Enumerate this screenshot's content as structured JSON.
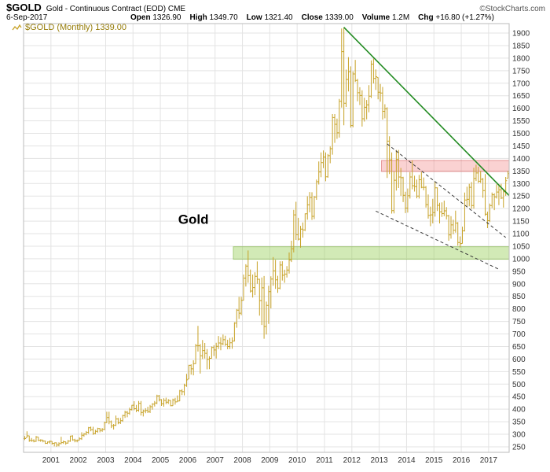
{
  "header": {
    "symbol": "$GOLD",
    "description": "Gold - Continuous Contract (EOD) CME",
    "site": "©StockCharts.com",
    "date": "6-Sep-2017",
    "quote": [
      {
        "label": "Open",
        "value": "1326.90"
      },
      {
        "label": "High",
        "value": "1349.70"
      },
      {
        "label": "Low",
        "value": "1321.40"
      },
      {
        "label": "Close",
        "value": "1339.00"
      },
      {
        "label": "Volume",
        "value": "1.2M"
      },
      {
        "label": "Chg",
        "value": "+16.80 (+1.27%)"
      }
    ]
  },
  "legend": {
    "text": "$GOLD (Monthly) 1339.00"
  },
  "chart_data": {
    "type": "bar",
    "subtype": "monthly-ohlc",
    "title": "$GOLD (Monthly) 1339.00",
    "x_start_year": 2000,
    "x_tick_years": [
      2001,
      2002,
      2003,
      2004,
      2005,
      2006,
      2007,
      2008,
      2009,
      2010,
      2011,
      2012,
      2013,
      2014,
      2015,
      2016,
      2017
    ],
    "y_ticks": [
      1900,
      1850,
      1800,
      1750,
      1700,
      1650,
      1600,
      1550,
      1500,
      1450,
      1400,
      1350,
      1300,
      1250,
      1200,
      1150,
      1100,
      1050,
      1000,
      950,
      900,
      850,
      800,
      750,
      700,
      650,
      600,
      550,
      500,
      450,
      400,
      350,
      300,
      250
    ],
    "ylim": [
      250,
      1900
    ],
    "bars_hlc": [
      [
        293,
        277,
        283
      ],
      [
        312,
        287,
        294
      ],
      [
        295,
        270,
        276
      ],
      [
        285,
        270,
        275
      ],
      [
        280,
        268,
        272
      ],
      [
        293,
        270,
        289
      ],
      [
        289,
        273,
        276
      ],
      [
        280,
        270,
        277
      ],
      [
        278,
        268,
        273
      ],
      [
        275,
        262,
        264
      ],
      [
        271,
        262,
        269
      ],
      [
        275,
        263,
        272
      ],
      [
        272,
        258,
        264
      ],
      [
        267,
        252,
        266
      ],
      [
        267,
        250,
        257
      ],
      [
        268,
        252,
        263
      ],
      [
        290,
        260,
        267
      ],
      [
        275,
        262,
        270
      ],
      [
        271,
        258,
        265
      ],
      [
        277,
        263,
        273
      ],
      [
        294,
        270,
        293
      ],
      [
        296,
        274,
        278
      ],
      [
        282,
        268,
        274
      ],
      [
        279,
        268,
        276
      ],
      [
        288,
        276,
        282
      ],
      [
        308,
        278,
        296
      ],
      [
        305,
        290,
        301
      ],
      [
        313,
        296,
        308
      ],
      [
        329,
        302,
        326
      ],
      [
        331,
        312,
        318
      ],
      [
        330,
        298,
        303
      ],
      [
        318,
        300,
        312
      ],
      [
        326,
        306,
        323
      ],
      [
        325,
        308,
        316
      ],
      [
        325,
        310,
        319
      ],
      [
        350,
        316,
        347
      ],
      [
        390,
        345,
        367
      ],
      [
        390,
        340,
        350
      ],
      [
        355,
        325,
        334
      ],
      [
        341,
        319,
        336
      ],
      [
        375,
        333,
        361
      ],
      [
        365,
        340,
        346
      ],
      [
        365,
        341,
        354
      ],
      [
        378,
        350,
        375
      ],
      [
        394,
        365,
        388
      ],
      [
        393,
        368,
        384
      ],
      [
        406,
        378,
        398
      ],
      [
        417,
        395,
        416
      ],
      [
        432,
        396,
        402
      ],
      [
        417,
        388,
        396
      ],
      [
        433,
        390,
        423
      ],
      [
        433,
        375,
        387
      ],
      [
        398,
        371,
        393
      ],
      [
        404,
        384,
        395
      ],
      [
        410,
        385,
        391
      ],
      [
        417,
        385,
        410
      ],
      [
        424,
        398,
        420
      ],
      [
        433,
        411,
        425
      ],
      [
        458,
        420,
        453
      ],
      [
        457,
        431,
        438
      ],
      [
        440,
        413,
        422
      ],
      [
        444,
        410,
        435
      ],
      [
        446,
        420,
        428
      ],
      [
        440,
        421,
        435
      ],
      [
        436,
        412,
        414
      ],
      [
        442,
        414,
        437
      ],
      [
        445,
        418,
        429
      ],
      [
        455,
        429,
        433
      ],
      [
        477,
        432,
        473
      ],
      [
        480,
        456,
        470
      ],
      [
        502,
        455,
        495
      ],
      [
        541,
        489,
        517
      ],
      [
        577,
        520,
        575
      ],
      [
        579,
        538,
        561
      ],
      [
        595,
        535,
        582
      ],
      [
        660,
        580,
        654
      ],
      [
        732,
        630,
        653
      ],
      [
        660,
        542,
        613
      ],
      [
        676,
        600,
        634
      ],
      [
        664,
        602,
        623
      ],
      [
        640,
        559,
        599
      ],
      [
        611,
        560,
        603
      ],
      [
        650,
        603,
        646
      ],
      [
        655,
        612,
        636
      ],
      [
        665,
        602,
        651
      ],
      [
        692,
        640,
        664
      ],
      [
        687,
        635,
        661
      ],
      [
        698,
        655,
        677
      ],
      [
        693,
        652,
        659
      ],
      [
        677,
        639,
        650
      ],
      [
        684,
        640,
        665
      ],
      [
        687,
        641,
        672
      ],
      [
        747,
        670,
        743
      ],
      [
        800,
        725,
        795
      ],
      [
        848,
        760,
        783
      ],
      [
        848,
        775,
        834
      ],
      [
        937,
        833,
        923
      ],
      [
        978,
        889,
        971
      ],
      [
        1033,
        904,
        933
      ],
      [
        957,
        865,
        871
      ],
      [
        937,
        845,
        885
      ],
      [
        946,
        855,
        930
      ],
      [
        989,
        900,
        918
      ],
      [
        920,
        773,
        833
      ],
      [
        925,
        736,
        884
      ],
      [
        931,
        681,
        730
      ],
      [
        829,
        698,
        814
      ],
      [
        892,
        740,
        869
      ],
      [
        930,
        802,
        919
      ],
      [
        1007,
        892,
        952
      ],
      [
        996,
        880,
        916
      ],
      [
        932,
        864,
        883
      ],
      [
        990,
        878,
        975
      ],
      [
        990,
        913,
        934
      ],
      [
        956,
        904,
        939
      ],
      [
        971,
        925,
        955
      ],
      [
        1025,
        941,
        995
      ],
      [
        1072,
        987,
        1040
      ],
      [
        1195,
        1025,
        1175
      ],
      [
        1227,
        1075,
        1096
      ],
      [
        1163,
        1073,
        1078
      ],
      [
        1131,
        1044,
        1118
      ],
      [
        1145,
        1084,
        1115
      ],
      [
        1181,
        1110,
        1179
      ],
      [
        1249,
        1156,
        1215
      ],
      [
        1266,
        1185,
        1244
      ],
      [
        1265,
        1155,
        1169
      ],
      [
        1250,
        1158,
        1246
      ],
      [
        1316,
        1235,
        1307
      ],
      [
        1388,
        1296,
        1346
      ],
      [
        1424,
        1325,
        1383
      ],
      [
        1432,
        1361,
        1405
      ],
      [
        1424,
        1309,
        1327
      ],
      [
        1418,
        1323,
        1411
      ],
      [
        1448,
        1381,
        1439
      ],
      [
        1577,
        1415,
        1563
      ],
      [
        1577,
        1462,
        1536
      ],
      [
        1559,
        1478,
        1502
      ],
      [
        1637,
        1483,
        1628
      ],
      [
        1918,
        1603,
        1826
      ],
      [
        1923,
        1532,
        1620
      ],
      [
        1754,
        1605,
        1715
      ],
      [
        1804,
        1667,
        1746
      ],
      [
        1767,
        1523,
        1531
      ],
      [
        1747,
        1524,
        1737
      ],
      [
        1793,
        1705,
        1711
      ],
      [
        1717,
        1628,
        1662
      ],
      [
        1684,
        1613,
        1651
      ],
      [
        1672,
        1527,
        1558
      ],
      [
        1642,
        1547,
        1604
      ],
      [
        1633,
        1556,
        1614
      ],
      [
        1692,
        1584,
        1648
      ],
      [
        1791,
        1641,
        1776
      ],
      [
        1798,
        1699,
        1719
      ],
      [
        1755,
        1673,
        1726
      ],
      [
        1723,
        1636,
        1664
      ],
      [
        1697,
        1626,
        1661
      ],
      [
        1685,
        1555,
        1588
      ],
      [
        1616,
        1560,
        1598
      ],
      [
        1604,
        1322,
        1469
      ],
      [
        1488,
        1338,
        1394
      ],
      [
        1424,
        1180,
        1192
      ],
      [
        1349,
        1181,
        1313
      ],
      [
        1434,
        1272,
        1396
      ],
      [
        1434,
        1282,
        1326
      ],
      [
        1362,
        1251,
        1323
      ],
      [
        1327,
        1226,
        1253
      ],
      [
        1267,
        1182,
        1202
      ],
      [
        1280,
        1184,
        1251
      ],
      [
        1345,
        1240,
        1326
      ],
      [
        1392,
        1277,
        1291
      ],
      [
        1331,
        1268,
        1288
      ],
      [
        1316,
        1241,
        1250
      ],
      [
        1334,
        1240,
        1315
      ],
      [
        1346,
        1281,
        1285
      ],
      [
        1324,
        1273,
        1285
      ],
      [
        1290,
        1204,
        1216
      ],
      [
        1256,
        1160,
        1173
      ],
      [
        1208,
        1130,
        1175
      ],
      [
        1239,
        1141,
        1184
      ],
      [
        1307,
        1168,
        1283
      ],
      [
        1285,
        1190,
        1213
      ],
      [
        1223,
        1141,
        1187
      ],
      [
        1225,
        1167,
        1180
      ],
      [
        1232,
        1170,
        1191
      ],
      [
        1206,
        1157,
        1171
      ],
      [
        1175,
        1072,
        1095
      ],
      [
        1170,
        1080,
        1135
      ],
      [
        1156,
        1098,
        1114
      ],
      [
        1192,
        1104,
        1142
      ],
      [
        1146,
        1052,
        1065
      ],
      [
        1089,
        1045,
        1060
      ],
      [
        1128,
        1061,
        1111
      ],
      [
        1264,
        1109,
        1234
      ],
      [
        1287,
        1208,
        1237
      ],
      [
        1299,
        1209,
        1285
      ],
      [
        1306,
        1199,
        1212
      ],
      [
        1363,
        1200,
        1320
      ],
      [
        1375,
        1310,
        1342
      ],
      [
        1367,
        1302,
        1309
      ],
      [
        1350,
        1302,
        1317
      ],
      [
        1322,
        1243,
        1272
      ],
      [
        1338,
        1171,
        1178
      ],
      [
        1188,
        1122,
        1152
      ],
      [
        1220,
        1146,
        1212
      ],
      [
        1264,
        1202,
        1255
      ],
      [
        1261,
        1194,
        1247
      ],
      [
        1297,
        1240,
        1266
      ],
      [
        1298,
        1214,
        1275
      ],
      [
        1299,
        1238,
        1242
      ],
      [
        1275,
        1204,
        1267
      ],
      [
        1326,
        1251,
        1311
      ],
      [
        1350,
        1321,
        1339
      ]
    ],
    "annotations": {
      "text_label": {
        "text": "Gold",
        "month_index": 74,
        "price": 1140
      },
      "trendline": {
        "from_month_index": 140,
        "from_price": 1923,
        "to_month_index": 213,
        "to_price": 1252
      },
      "dashed_lines": [
        {
          "from_month_index": 159,
          "from_price": 1458,
          "to_month_index": 211,
          "to_price": 1085
        },
        {
          "from_month_index": 154,
          "from_price": 1190,
          "to_month_index": 208,
          "to_price": 958
        }
      ],
      "zones": [
        {
          "name": "resistance-band",
          "from_month_index": 157,
          "price_low": 1348,
          "price_high": 1392,
          "fill": "rgba(238,106,106,0.30)",
          "stroke": "rgba(214,86,86,0.55)"
        },
        {
          "name": "support-band",
          "from_month_index": 92,
          "price_low": 998,
          "price_high": 1048,
          "fill": "rgba(148,205,82,0.42)",
          "stroke": "rgba(118,176,56,0.55)"
        }
      ]
    },
    "colors": {
      "bar": "#C7A227",
      "legend_text": "#967C08",
      "grid": "#e3e3e3",
      "frame": "#bbbbbb",
      "axis_text": "#333333",
      "trendline": "#228B22",
      "dashed": "#3a3a3a",
      "label_text": "#000000"
    },
    "legend_position": "top-left",
    "grid": true
  }
}
